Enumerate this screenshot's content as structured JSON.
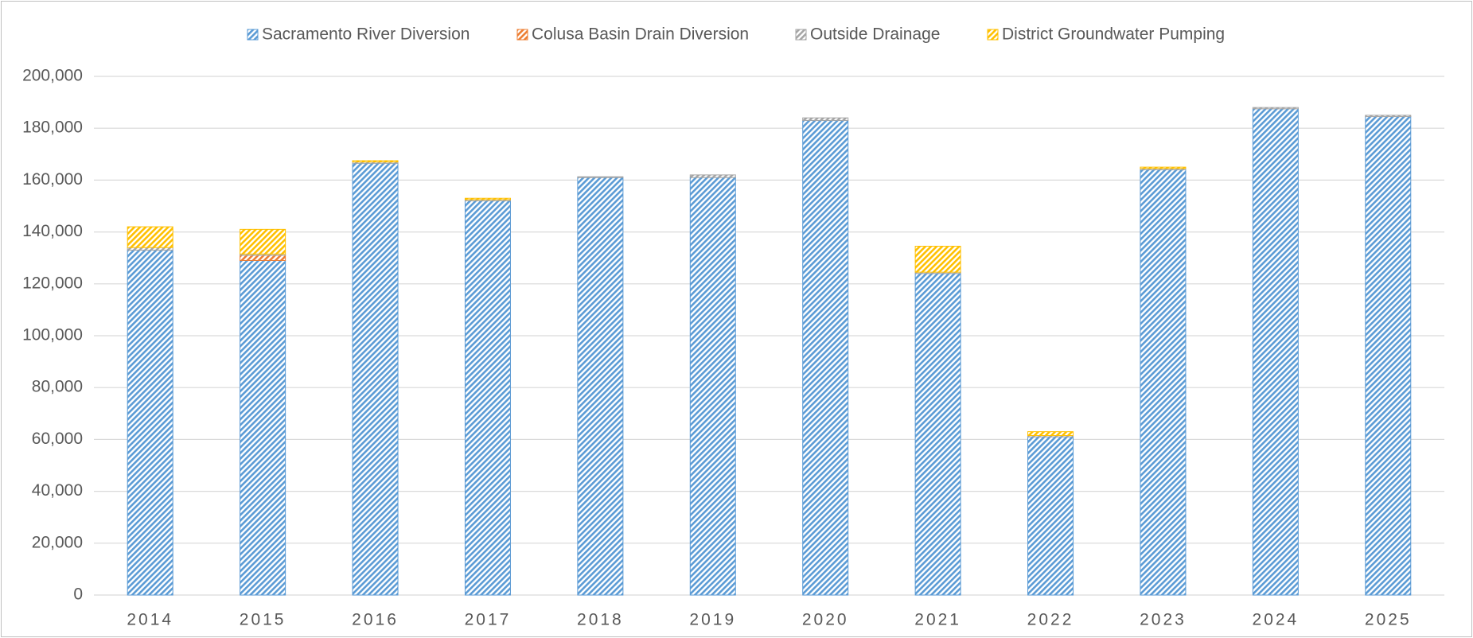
{
  "chart_data": {
    "type": "bar",
    "stacked": true,
    "categories": [
      "2014",
      "2015",
      "2016",
      "2017",
      "2018",
      "2019",
      "2020",
      "2021",
      "2022",
      "2023",
      "2024",
      "2025"
    ],
    "series": [
      {
        "name": "Sacramento River Diversion",
        "color": "#5b9bd5",
        "values": [
          133000,
          129000,
          166500,
          152000,
          161000,
          161000,
          183000,
          124000,
          61000,
          164000,
          187500,
          184500
        ]
      },
      {
        "name": "Colusa Basin Drain Diversion",
        "color": "#ed7d31",
        "values": [
          0,
          2000,
          0,
          0,
          0,
          0,
          0,
          0,
          0,
          0,
          0,
          0
        ]
      },
      {
        "name": "Outside Drainage",
        "color": "#a5a5a5",
        "values": [
          1000,
          500,
          500,
          500,
          300,
          1000,
          1000,
          500,
          500,
          500,
          500,
          500
        ]
      },
      {
        "name": "District Groundwater Pumping",
        "color": "#ffc000",
        "values": [
          8000,
          9500,
          500,
          500,
          0,
          0,
          0,
          10000,
          1500,
          500,
          0,
          0
        ]
      }
    ],
    "ylim": [
      0,
      200000
    ],
    "yticks": [
      0,
      {
        "value": 20000,
        "label": "20,000"
      },
      {
        "value": 40000,
        "label": "40,000"
      },
      {
        "value": 60000,
        "label": "60,000"
      },
      {
        "value": 80000,
        "label": "80,000"
      },
      {
        "value": 100000,
        "label": "100,000"
      },
      {
        "value": 120000,
        "label": "120,000"
      },
      {
        "value": 140000,
        "label": "140,000"
      },
      {
        "value": 160000,
        "label": "160,000"
      },
      {
        "value": 180000,
        "label": "180,000"
      },
      {
        "value": 200000,
        "label": "200,000"
      }
    ],
    "grid": true,
    "legend": "top",
    "hatched": true
  }
}
